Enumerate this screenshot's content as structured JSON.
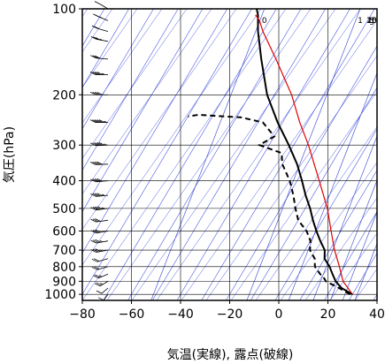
{
  "chart_data": {
    "type": "line",
    "chart_kind": "skew-T log-P sounding",
    "xlabel": "気温(実線), 露点(破線)",
    "ylabel": "気圧(hPa)",
    "x_ticks": [
      -80,
      -60,
      -40,
      -20,
      0,
      20,
      40
    ],
    "y_ticks": [
      100,
      200,
      300,
      400,
      500,
      600,
      700,
      800,
      900,
      1000
    ],
    "xlim": [
      -80,
      40
    ],
    "ylim": [
      1050,
      100
    ],
    "y_scale": "log",
    "skew_deg_per_log10_p": 69,
    "grid": true,
    "mixing_ratio_labels": [
      {
        "text": "0",
        "t_at_1000": -52
      },
      {
        "text": "1",
        "t_at_1000": -13
      },
      {
        "text": "5",
        "t_at_1000": 4
      },
      {
        "text": "10",
        "t_at_1000": 14
      },
      {
        "text": "15",
        "t_at_1000": 21
      },
      {
        "text": "20",
        "t_at_1000": 26
      },
      {
        "text": "g",
        "t_at_1000": 31
      }
    ],
    "series": [
      {
        "role": "temperature",
        "style": "solid",
        "color": "#000000",
        "points": [
          [
            1000,
            30
          ],
          [
            950,
            24
          ],
          [
            900,
            20
          ],
          [
            850,
            17
          ],
          [
            800,
            14
          ],
          [
            750,
            10
          ],
          [
            700,
            8
          ],
          [
            650,
            4
          ],
          [
            600,
            0
          ],
          [
            550,
            -4
          ],
          [
            500,
            -8
          ],
          [
            450,
            -13
          ],
          [
            400,
            -18
          ],
          [
            350,
            -24
          ],
          [
            300,
            -32
          ],
          [
            250,
            -42
          ],
          [
            200,
            -53
          ],
          [
            150,
            -64
          ],
          [
            120,
            -72
          ],
          [
            105,
            -76
          ],
          [
            100,
            -78
          ]
        ]
      },
      {
        "role": "dewpoint",
        "style": "dashed",
        "color": "#000000",
        "points": [
          [
            1000,
            29
          ],
          [
            950,
            23
          ],
          [
            900,
            16
          ],
          [
            870,
            14
          ],
          [
            850,
            12
          ],
          [
            800,
            8
          ],
          [
            750,
            6
          ],
          [
            700,
            2
          ],
          [
            650,
            0
          ],
          [
            600,
            -4
          ],
          [
            550,
            -10
          ],
          [
            500,
            -14
          ],
          [
            450,
            -18
          ],
          [
            400,
            -23
          ],
          [
            350,
            -30
          ],
          [
            320,
            -33
          ],
          [
            300,
            -44
          ],
          [
            280,
            -40
          ],
          [
            250,
            -48
          ],
          [
            240,
            -58
          ],
          [
            235,
            -76
          ],
          [
            238,
            -80
          ]
        ]
      },
      {
        "role": "parcel",
        "style": "solid",
        "color": "#e00000",
        "points": [
          [
            1000,
            30
          ],
          [
            900,
            23
          ],
          [
            800,
            18
          ],
          [
            700,
            12
          ],
          [
            600,
            6
          ],
          [
            500,
            -1
          ],
          [
            400,
            -11
          ],
          [
            300,
            -24
          ],
          [
            250,
            -33
          ],
          [
            200,
            -43
          ],
          [
            150,
            -58
          ],
          [
            120,
            -70
          ],
          [
            110,
            -74
          ],
          [
            105,
            -77
          ]
        ]
      }
    ],
    "wind_barbs": [
      {
        "p": 1000,
        "speed_kt": 10,
        "dir_deg": 200
      },
      {
        "p": 950,
        "speed_kt": 10,
        "dir_deg": 210
      },
      {
        "p": 900,
        "speed_kt": 15,
        "dir_deg": 220
      },
      {
        "p": 850,
        "speed_kt": 15,
        "dir_deg": 230
      },
      {
        "p": 800,
        "speed_kt": 20,
        "dir_deg": 240
      },
      {
        "p": 750,
        "speed_kt": 20,
        "dir_deg": 240
      },
      {
        "p": 700,
        "speed_kt": 25,
        "dir_deg": 250
      },
      {
        "p": 650,
        "speed_kt": 25,
        "dir_deg": 250
      },
      {
        "p": 600,
        "speed_kt": 30,
        "dir_deg": 250
      },
      {
        "p": 550,
        "speed_kt": 30,
        "dir_deg": 255
      },
      {
        "p": 500,
        "speed_kt": 35,
        "dir_deg": 255
      },
      {
        "p": 450,
        "speed_kt": 35,
        "dir_deg": 260
      },
      {
        "p": 400,
        "speed_kt": 40,
        "dir_deg": 260
      },
      {
        "p": 350,
        "speed_kt": 40,
        "dir_deg": 265
      },
      {
        "p": 300,
        "speed_kt": 45,
        "dir_deg": 265
      },
      {
        "p": 250,
        "speed_kt": 45,
        "dir_deg": 270
      },
      {
        "p": 200,
        "speed_kt": 40,
        "dir_deg": 270
      },
      {
        "p": 170,
        "speed_kt": 35,
        "dir_deg": 270
      },
      {
        "p": 150,
        "speed_kt": 30,
        "dir_deg": 280
      },
      {
        "p": 130,
        "speed_kt": 25,
        "dir_deg": 290
      },
      {
        "p": 120,
        "speed_kt": 20,
        "dir_deg": 300
      },
      {
        "p": 110,
        "speed_kt": 15,
        "dir_deg": 310
      },
      {
        "p": 100,
        "speed_kt": 10,
        "dir_deg": 320
      }
    ],
    "colors": {
      "mixing_ratio_lines": "#2f3fd0",
      "adiabat_lines": "#4a5ae0",
      "grid": "#000000",
      "parcel": "#e00000"
    }
  }
}
